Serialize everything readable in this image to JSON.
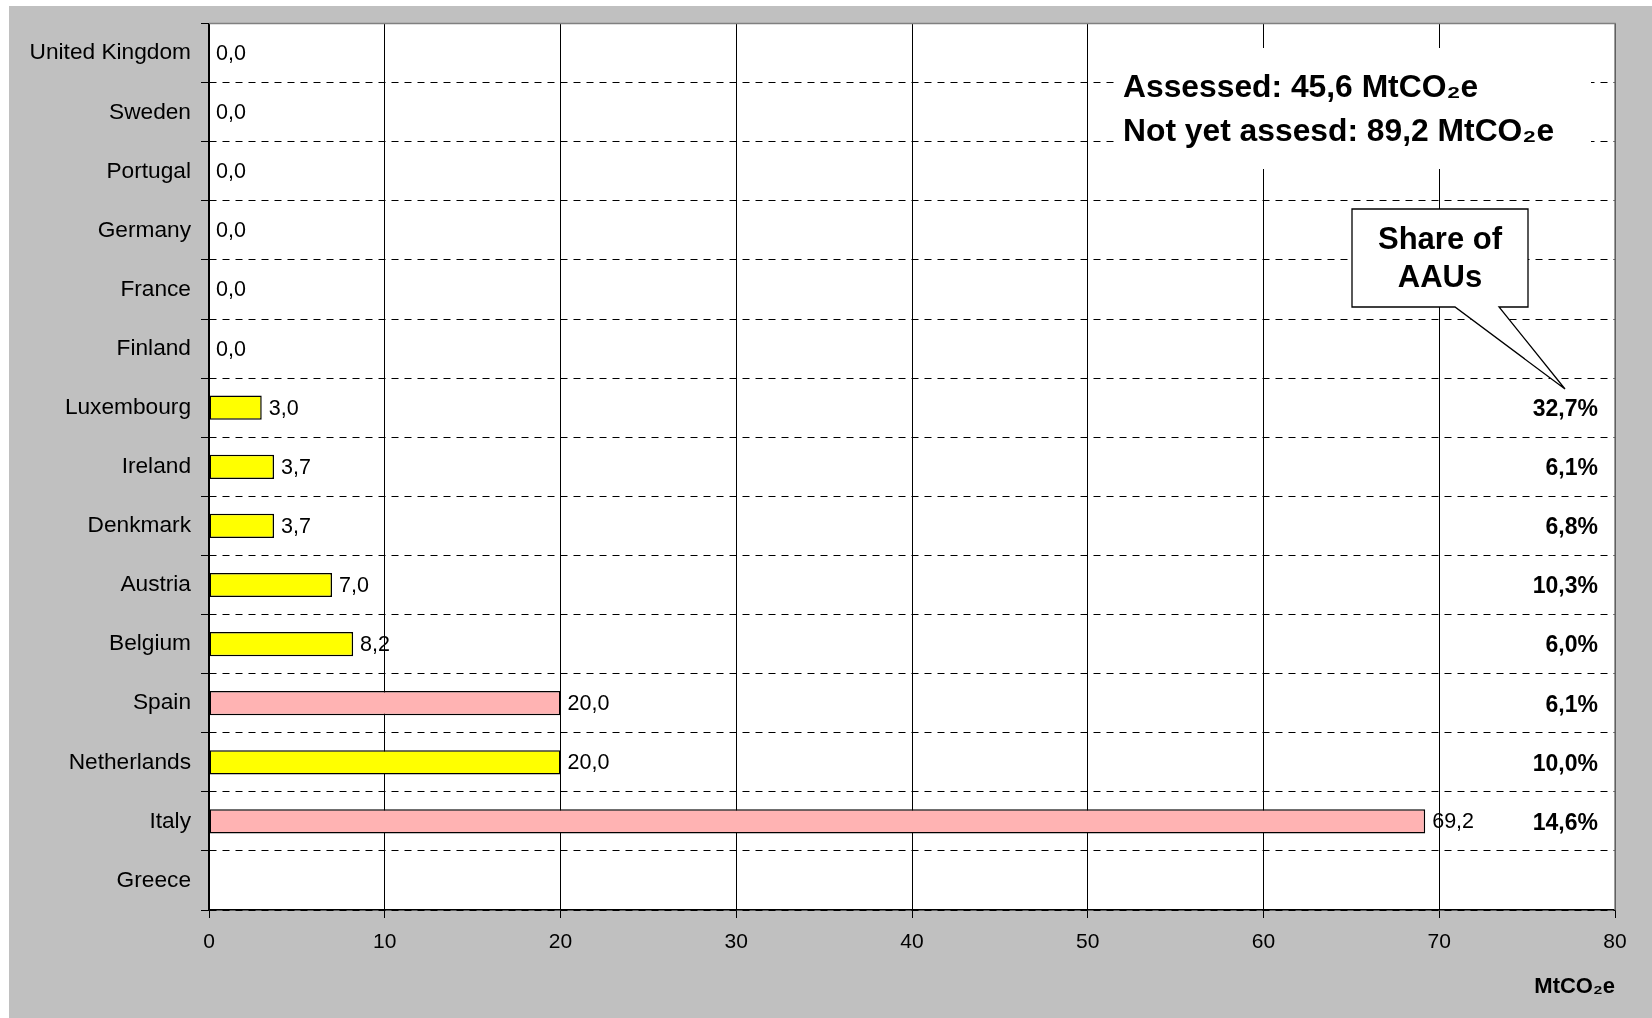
{
  "chart_data": {
    "type": "bar",
    "orientation": "horizontal",
    "categories": [
      "United Kingdom",
      "Sweden",
      "Portugal",
      "Germany",
      "France",
      "Finland",
      "Luxembourg",
      "Ireland",
      "Denkmark",
      "Austria",
      "Belgium",
      "Spain",
      "Netherlands",
      "Italy",
      "Greece"
    ],
    "values": [
      0.0,
      0.0,
      0.0,
      0.0,
      0.0,
      0.0,
      3.0,
      3.7,
      3.7,
      7.0,
      8.2,
      20.0,
      20.0,
      69.2,
      null
    ],
    "value_labels": [
      "0,0",
      "0,0",
      "0,0",
      "0,0",
      "0,0",
      "0,0",
      "3,0",
      "3,7",
      "3,7",
      "7,0",
      "8,2",
      "20,0",
      "20,0",
      "69,2",
      null
    ],
    "colors": [
      "#ffff00",
      "#ffff00",
      "#ffff00",
      "#ffff00",
      "#ffff00",
      "#ffff00",
      "#ffff00",
      "#ffff00",
      "#ffff00",
      "#ffff00",
      "#ffff00",
      "#ffb3b3",
      "#ffff00",
      "#ffb3b3",
      "#ffff00"
    ],
    "xlabel": "MtCO₂e",
    "xlim": [
      0,
      80
    ],
    "xticks": [
      0,
      10,
      20,
      30,
      40,
      50,
      60,
      70,
      80
    ],
    "grid": true,
    "annotations": [
      "Assessed: 45,6 MtCO₂e",
      "Not yet assesd: 89,2 MtCO₂e",
      "Share of AAUs",
      "32,7%",
      "6,1%",
      "6,8%",
      "10,3%",
      "6,0%",
      "6,1%",
      "10,0%",
      "14,6%"
    ]
  }
}
